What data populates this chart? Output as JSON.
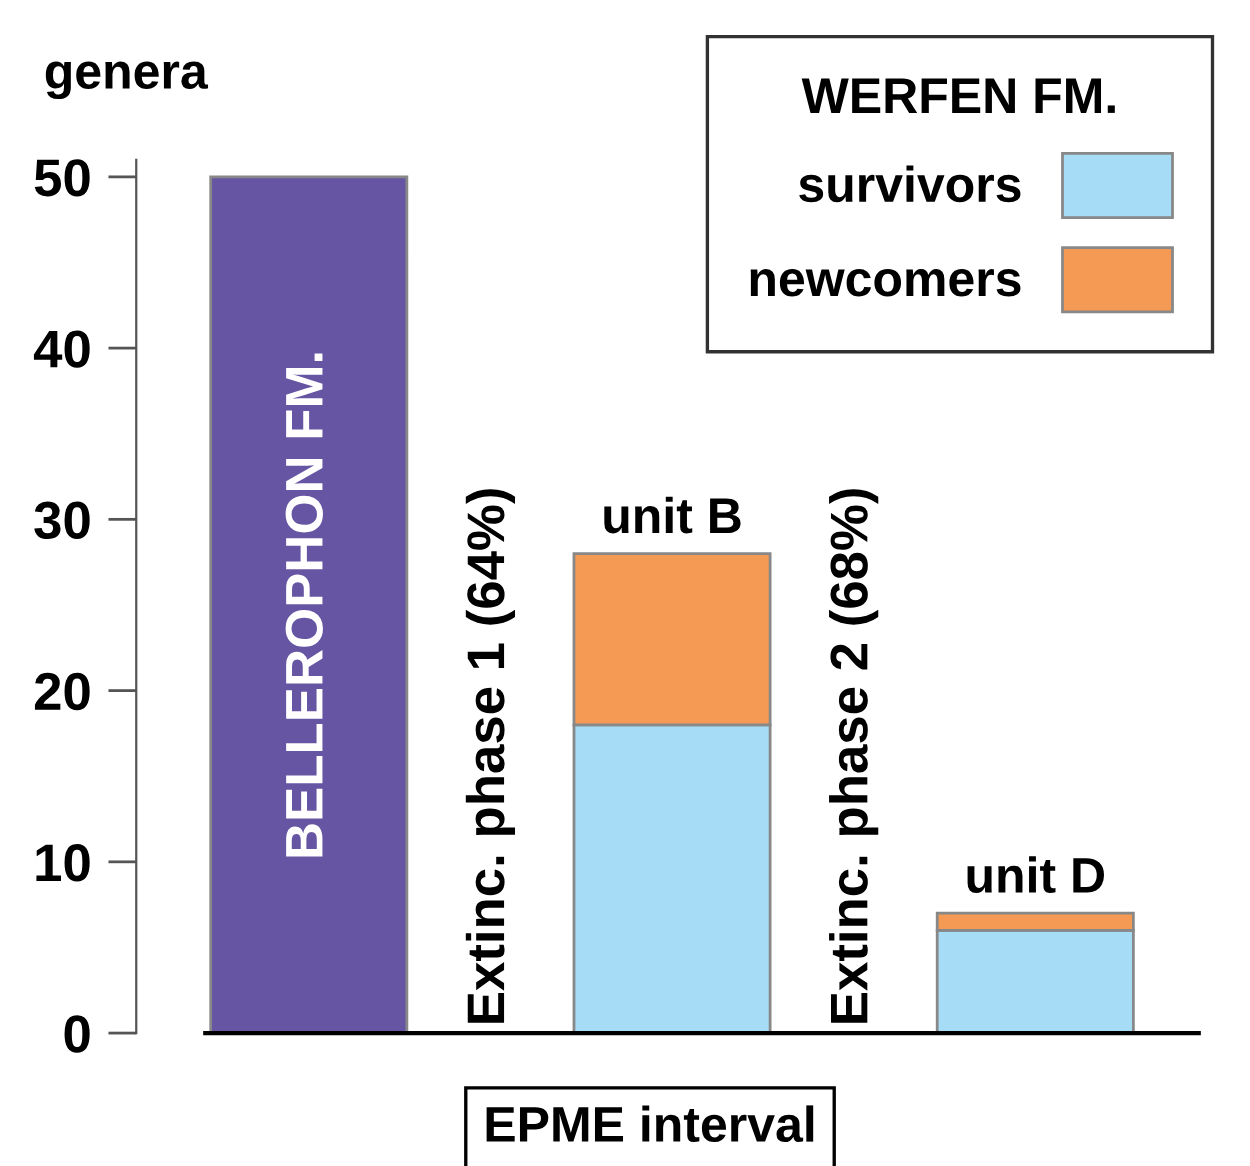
{
  "chart_data": {
    "type": "bar",
    "stacked": true,
    "categories": [
      "BELLEROPHON FM.",
      null,
      "unit B",
      null,
      "unit D"
    ],
    "series": [
      {
        "color": "#6655a3",
        "values": [
          50,
          null,
          null,
          null,
          null
        ]
      },
      {
        "name": "survivors",
        "color": "#a6dcf5",
        "values": [
          null,
          null,
          18,
          null,
          6
        ]
      },
      {
        "name": "newcomers",
        "color": "#f59a55",
        "values": [
          null,
          null,
          10,
          null,
          1
        ]
      }
    ],
    "ylim": [
      0,
      51
    ],
    "yticks": [
      0,
      10,
      20,
      30,
      40,
      50
    ],
    "ylabel": "genera",
    "xlabel": "EPME interval",
    "legend_title": "WERFEN FM.",
    "legend": "top right",
    "annotations": [
      "Extinc. phase 1 (64%)",
      "Extinc. phase 2 (68%)"
    ]
  }
}
